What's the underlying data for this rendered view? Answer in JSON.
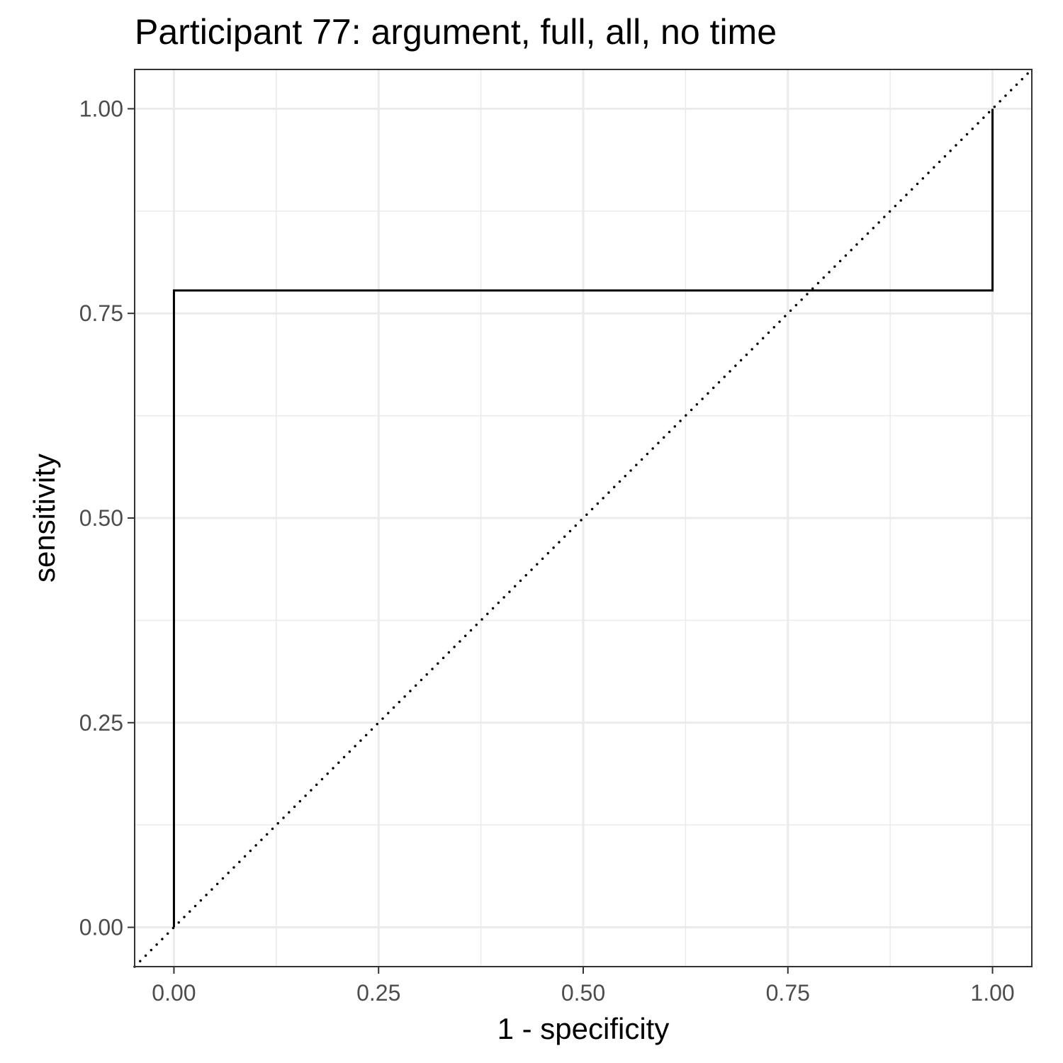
{
  "chart_data": {
    "type": "line",
    "title": "Participant 77: argument, full, all, no time",
    "xlabel": "1 - specificity",
    "ylabel": "sensitivity",
    "xlim": [
      -0.048,
      1.048
    ],
    "ylim": [
      -0.048,
      1.048
    ],
    "x_ticks": [
      0.0,
      0.25,
      0.5,
      0.75,
      1.0
    ],
    "x_tick_labels": [
      "0.00",
      "0.25",
      "0.50",
      "0.75",
      "1.00"
    ],
    "y_ticks": [
      0.0,
      0.25,
      0.5,
      0.75,
      1.0
    ],
    "y_tick_labels": [
      "0.00",
      "0.25",
      "0.50",
      "0.75",
      "1.00"
    ],
    "grid": true,
    "series": [
      {
        "style": "solid",
        "color": "#000000",
        "x": [
          0.0,
          0.0,
          1.0,
          1.0
        ],
        "y": [
          0.0,
          0.778,
          0.778,
          1.0
        ]
      },
      {
        "style": "dotted",
        "color": "#000000",
        "x": [
          -0.048,
          1.048
        ],
        "y": [
          -0.048,
          1.048
        ]
      }
    ]
  }
}
